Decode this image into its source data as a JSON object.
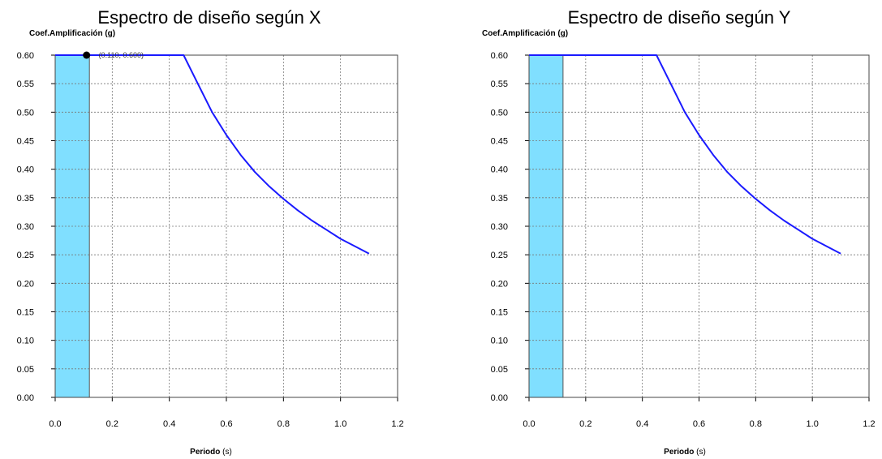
{
  "chart_data": [
    {
      "type": "line",
      "title": "Espectro de diseño según X",
      "ylabel": "Coef.Amplificación (g)",
      "xlabel_main": "Periodo",
      "xlabel_unit": " (s)",
      "xlim": [
        0.0,
        1.2
      ],
      "ylim": [
        0.0,
        0.6
      ],
      "xticks": [
        "0.0",
        "0.2",
        "0.4",
        "0.6",
        "0.8",
        "1.0",
        "1.2"
      ],
      "yticks": [
        "0.00",
        "0.05",
        "0.10",
        "0.15",
        "0.20",
        "0.25",
        "0.30",
        "0.35",
        "0.40",
        "0.45",
        "0.50",
        "0.55",
        "0.60"
      ],
      "grid": true,
      "band": {
        "x0": 0.0,
        "x1": 0.12,
        "color": "#80dfff"
      },
      "series": [
        {
          "color": "#1a1aff",
          "x": [
            0.0,
            0.45,
            0.5,
            0.55,
            0.6,
            0.65,
            0.7,
            0.75,
            0.8,
            0.85,
            0.9,
            0.95,
            1.0,
            1.05,
            1.1
          ],
          "y": [
            0.6,
            0.6,
            0.55,
            0.5,
            0.46,
            0.425,
            0.395,
            0.37,
            0.348,
            0.328,
            0.31,
            0.294,
            0.278,
            0.265,
            0.252
          ]
        }
      ],
      "marker": {
        "x": 0.11,
        "y": 0.6,
        "label": "(0.110, 0.600)"
      }
    },
    {
      "type": "line",
      "title": "Espectro de diseño según Y",
      "ylabel": "Coef.Amplificación (g)",
      "xlabel_main": "Periodo",
      "xlabel_unit": " (s)",
      "xlim": [
        0.0,
        1.2
      ],
      "ylim": [
        0.0,
        0.6
      ],
      "xticks": [
        "0.0",
        "0.2",
        "0.4",
        "0.6",
        "0.8",
        "1.0",
        "1.2"
      ],
      "yticks": [
        "0.00",
        "0.05",
        "0.10",
        "0.15",
        "0.20",
        "0.25",
        "0.30",
        "0.35",
        "0.40",
        "0.45",
        "0.50",
        "0.55",
        "0.60"
      ],
      "grid": true,
      "band": {
        "x0": 0.0,
        "x1": 0.12,
        "color": "#80dfff"
      },
      "series": [
        {
          "color": "#1a1aff",
          "x": [
            0.0,
            0.45,
            0.5,
            0.55,
            0.6,
            0.65,
            0.7,
            0.75,
            0.8,
            0.85,
            0.9,
            0.95,
            1.0,
            1.05,
            1.1
          ],
          "y": [
            0.6,
            0.6,
            0.55,
            0.5,
            0.46,
            0.425,
            0.395,
            0.37,
            0.348,
            0.328,
            0.31,
            0.294,
            0.278,
            0.265,
            0.252
          ]
        }
      ]
    }
  ]
}
